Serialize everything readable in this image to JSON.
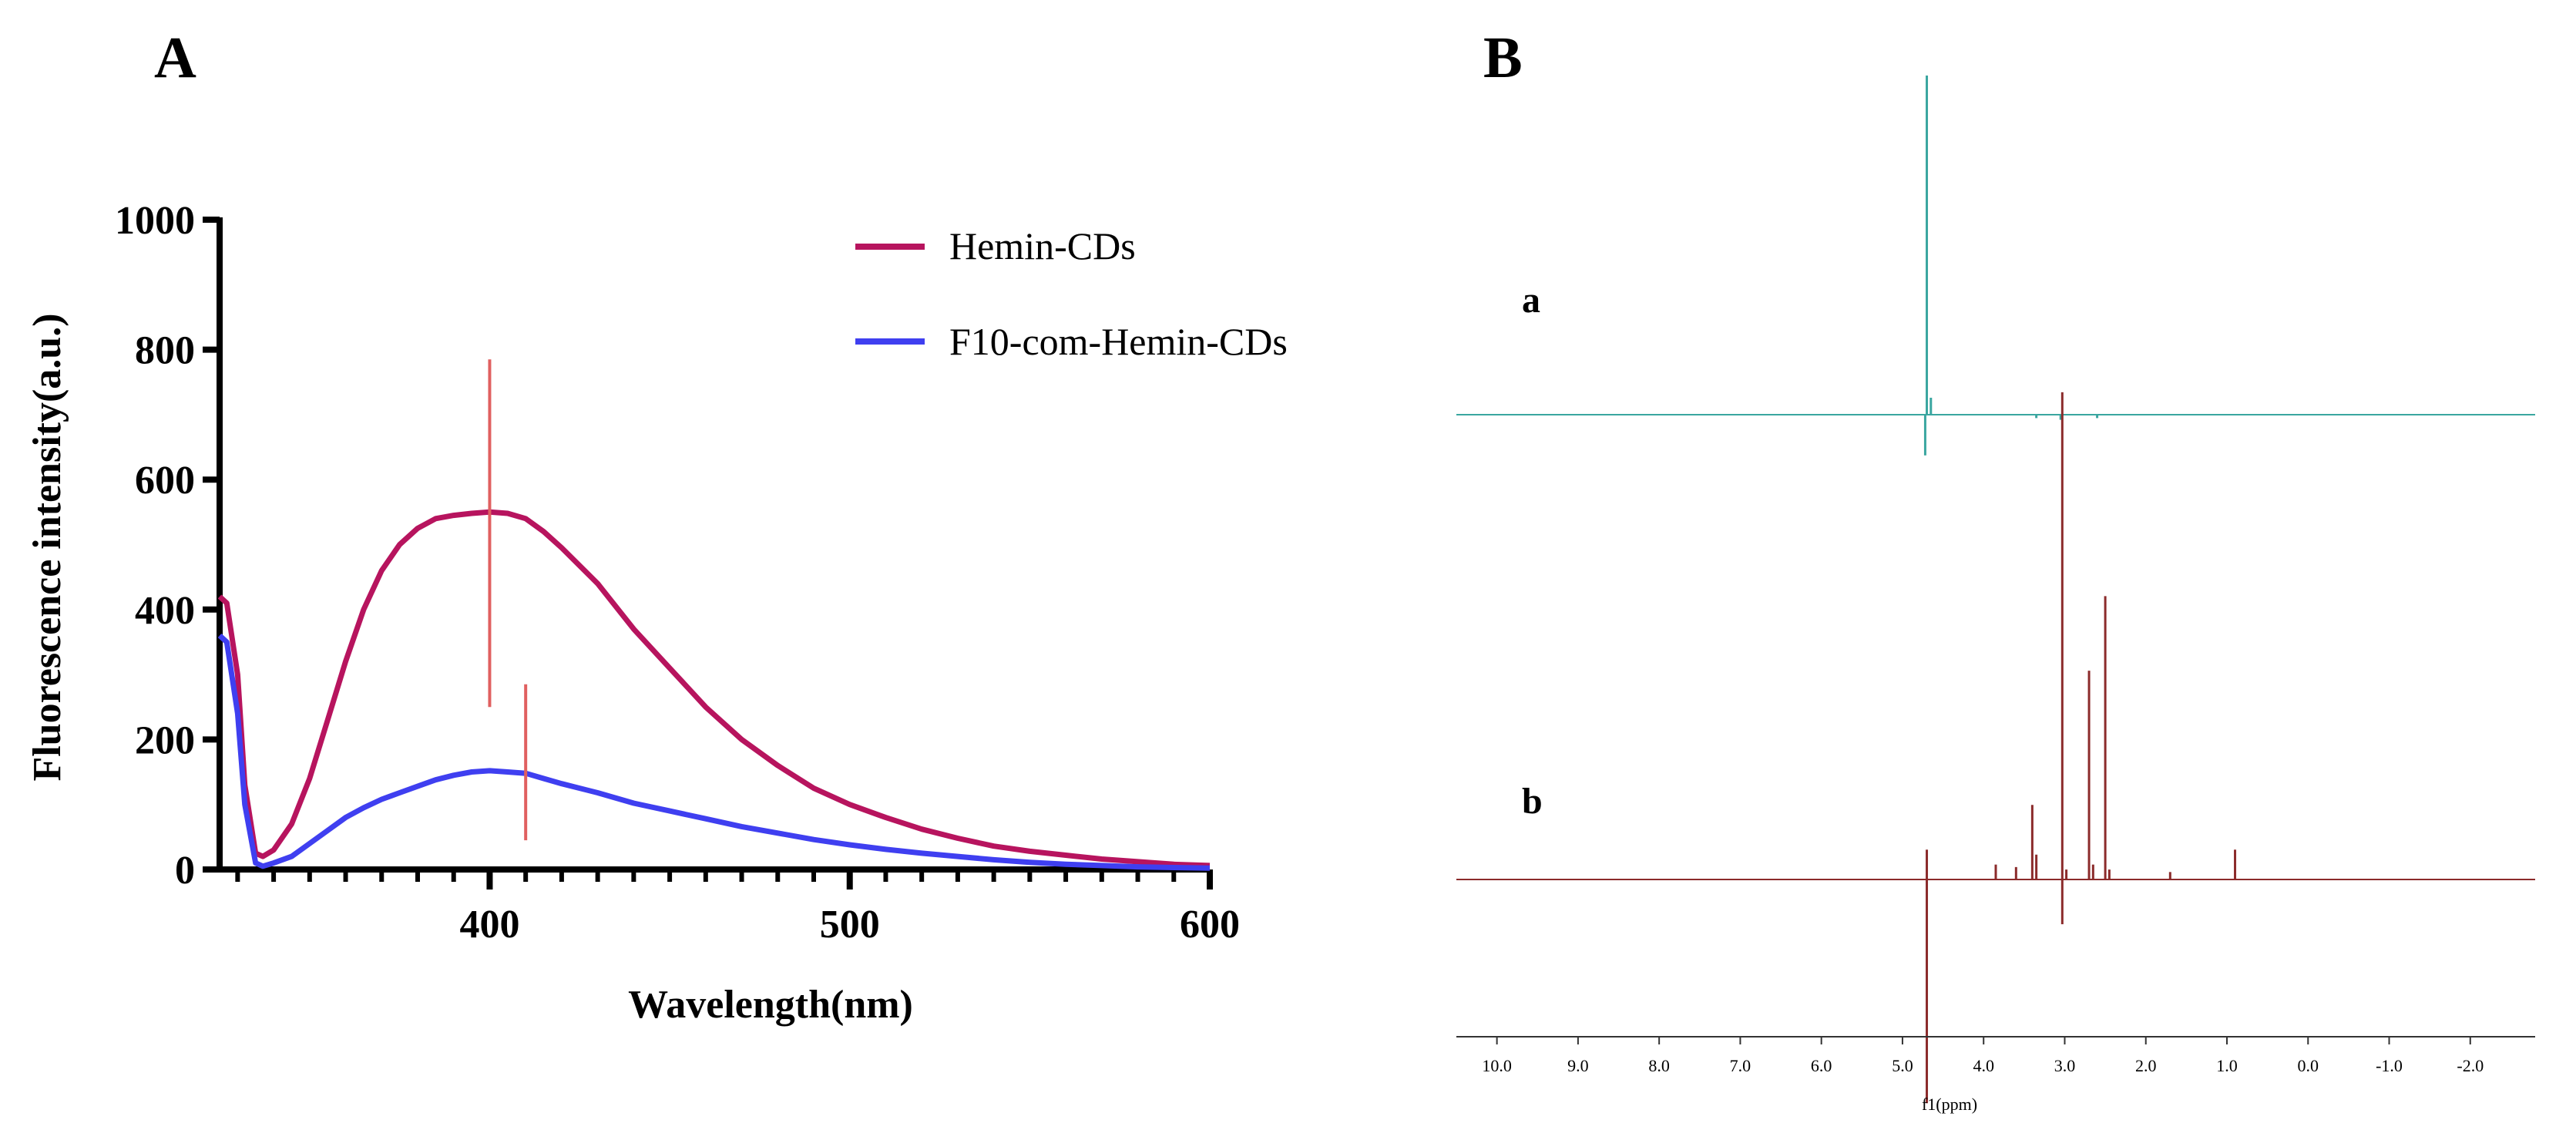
{
  "panels": {
    "A": {
      "letter": "A"
    },
    "B": {
      "letter": "B"
    }
  },
  "chart_data": [
    {
      "panel": "A",
      "type": "line",
      "title": "",
      "xlabel": "Wavelength(nm)",
      "ylabel": "Fluorescence intensity(a.u.)",
      "xlim": [
        325,
        600
      ],
      "ylim": [
        0,
        1000
      ],
      "xticks": [
        400,
        500,
        600
      ],
      "xticks_minor_step": 10,
      "yticks": [
        0,
        200,
        400,
        600,
        800,
        1000
      ],
      "legend_position": "top-right",
      "grid": false,
      "series": [
        {
          "name": "Hemin-CDs",
          "color": "#b7145e",
          "x": [
            325,
            327,
            330,
            332,
            335,
            337,
            340,
            345,
            350,
            355,
            360,
            365,
            370,
            375,
            380,
            385,
            390,
            395,
            400,
            405,
            410,
            415,
            420,
            430,
            440,
            450,
            460,
            470,
            480,
            490,
            500,
            510,
            520,
            530,
            540,
            550,
            560,
            570,
            580,
            590,
            600
          ],
          "y": [
            420,
            410,
            300,
            130,
            25,
            20,
            30,
            70,
            140,
            230,
            320,
            400,
            460,
            500,
            525,
            540,
            545,
            548,
            550,
            548,
            540,
            520,
            495,
            440,
            370,
            310,
            250,
            200,
            160,
            125,
            100,
            80,
            62,
            48,
            36,
            28,
            22,
            16,
            12,
            8,
            6
          ]
        },
        {
          "name": "F10-com-Hemin-CDs",
          "color": "#3f3ff0",
          "x": [
            325,
            327,
            330,
            332,
            335,
            337,
            340,
            345,
            350,
            355,
            360,
            365,
            370,
            375,
            380,
            385,
            390,
            395,
            400,
            405,
            410,
            415,
            420,
            430,
            440,
            450,
            460,
            470,
            480,
            490,
            500,
            510,
            520,
            530,
            540,
            550,
            560,
            570,
            580,
            590,
            600
          ],
          "y": [
            360,
            350,
            240,
            100,
            10,
            5,
            10,
            20,
            40,
            60,
            80,
            95,
            108,
            118,
            128,
            138,
            145,
            150,
            152,
            150,
            148,
            140,
            132,
            118,
            102,
            90,
            78,
            66,
            56,
            46,
            38,
            31,
            25,
            20,
            15,
            11,
            8,
            6,
            4,
            3,
            2
          ]
        }
      ],
      "annotations": [
        {
          "type": "vline",
          "x": 400,
          "y_range": [
            250,
            785
          ],
          "color": "#e06060"
        },
        {
          "type": "vline",
          "x": 410,
          "y_range": [
            45,
            285
          ],
          "color": "#e06060"
        }
      ]
    },
    {
      "panel": "B",
      "type": "line",
      "subtype": "1H-NMR spectra",
      "title": "",
      "xlabel": "f1(ppm)",
      "xlim": [
        10.5,
        -2.8
      ],
      "x_reversed": true,
      "xticks": [
        10.0,
        9.0,
        8.0,
        7.0,
        6.0,
        5.0,
        4.0,
        3.0,
        2.0,
        1.0,
        0.0,
        -1.0,
        -2.0
      ],
      "xtick_labels": [
        "10.0",
        "9.0",
        "8.0",
        "7.0",
        "6.0",
        "5.0",
        "4.0",
        "3.0",
        "2.0",
        "1.0",
        "0.0",
        "-1.0",
        "-2.0"
      ],
      "series": [
        {
          "name": "a",
          "color": "#3aa6a0",
          "peaks": [
            {
              "ppm": 4.7,
              "height": 1.0
            },
            {
              "ppm": 4.72,
              "height": -0.12
            },
            {
              "ppm": 4.65,
              "height": 0.05
            },
            {
              "ppm": 3.35,
              "height": -0.01
            },
            {
              "ppm": 3.05,
              "height": -0.015
            },
            {
              "ppm": 2.6,
              "height": -0.01
            }
          ]
        },
        {
          "name": "b",
          "color": "#8b2b2b",
          "peaks": [
            {
              "ppm": 4.7,
              "height": 0.06
            },
            {
              "ppm": 4.7,
              "height": -0.45
            },
            {
              "ppm": 3.85,
              "height": 0.03
            },
            {
              "ppm": 3.6,
              "height": 0.025
            },
            {
              "ppm": 3.4,
              "height": 0.15
            },
            {
              "ppm": 3.35,
              "height": 0.05
            },
            {
              "ppm": 3.03,
              "height": 0.98
            },
            {
              "ppm": 3.03,
              "height": -0.09
            },
            {
              "ppm": 2.98,
              "height": 0.02
            },
            {
              "ppm": 2.7,
              "height": 0.42
            },
            {
              "ppm": 2.65,
              "height": 0.03
            },
            {
              "ppm": 2.5,
              "height": 0.57
            },
            {
              "ppm": 2.45,
              "height": 0.02
            },
            {
              "ppm": 1.7,
              "height": 0.015
            },
            {
              "ppm": 0.9,
              "height": 0.06
            }
          ]
        }
      ]
    }
  ]
}
